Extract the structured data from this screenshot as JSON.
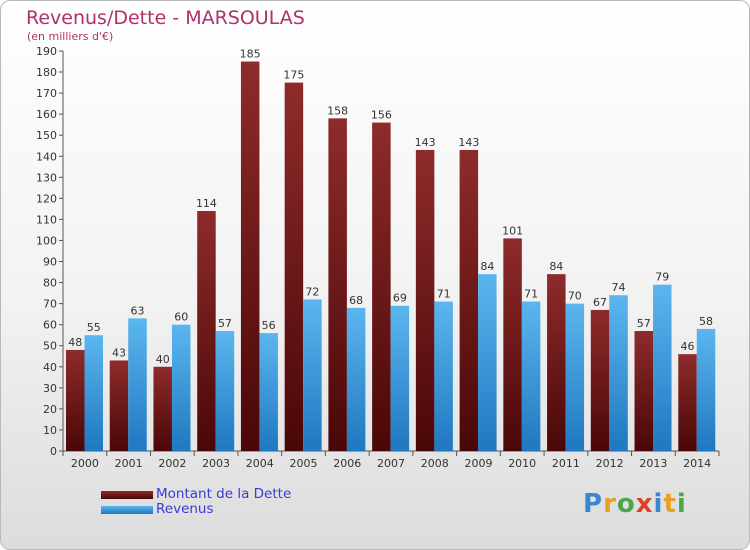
{
  "header": {
    "title": "Revenus/Dette - MARSOULAS",
    "subtitle": "(en milliers d'€)"
  },
  "colors": {
    "dette": "#7a1e1e",
    "revenus": "#3f9fe0",
    "title": "#b0306a",
    "legend_text": "#3b3bd6"
  },
  "legend": {
    "items": [
      {
        "label": "Montant de la Dette",
        "color": "#6a1515"
      },
      {
        "label": "Revenus",
        "color": "#3f9fe0"
      }
    ]
  },
  "logo": {
    "text": "Proxiti",
    "letter_colors": [
      "#3a87d0",
      "#e8a020",
      "#4aa84a",
      "#e0402a",
      "#3a87d0",
      "#e8a020",
      "#4aa84a"
    ]
  },
  "chart_data": {
    "type": "bar",
    "title": "Revenus/Dette - MARSOULAS",
    "subtitle": "(en milliers d'€)",
    "categories": [
      "2000",
      "2001",
      "2002",
      "2003",
      "2004",
      "2005",
      "2006",
      "2007",
      "2008",
      "2009",
      "2010",
      "2011",
      "2012",
      "2013",
      "2014"
    ],
    "series": [
      {
        "name": "Montant de la Dette",
        "values": [
          48,
          43,
          40,
          114,
          185,
          175,
          158,
          156,
          143,
          143,
          101,
          84,
          67,
          57,
          46
        ]
      },
      {
        "name": "Revenus",
        "values": [
          55,
          63,
          60,
          57,
          56,
          72,
          68,
          69,
          71,
          84,
          71,
          70,
          74,
          79,
          58
        ]
      }
    ],
    "ylim": [
      0,
      190
    ],
    "ytick_step": 10,
    "grid": false,
    "legend_position": "bottom-left"
  }
}
